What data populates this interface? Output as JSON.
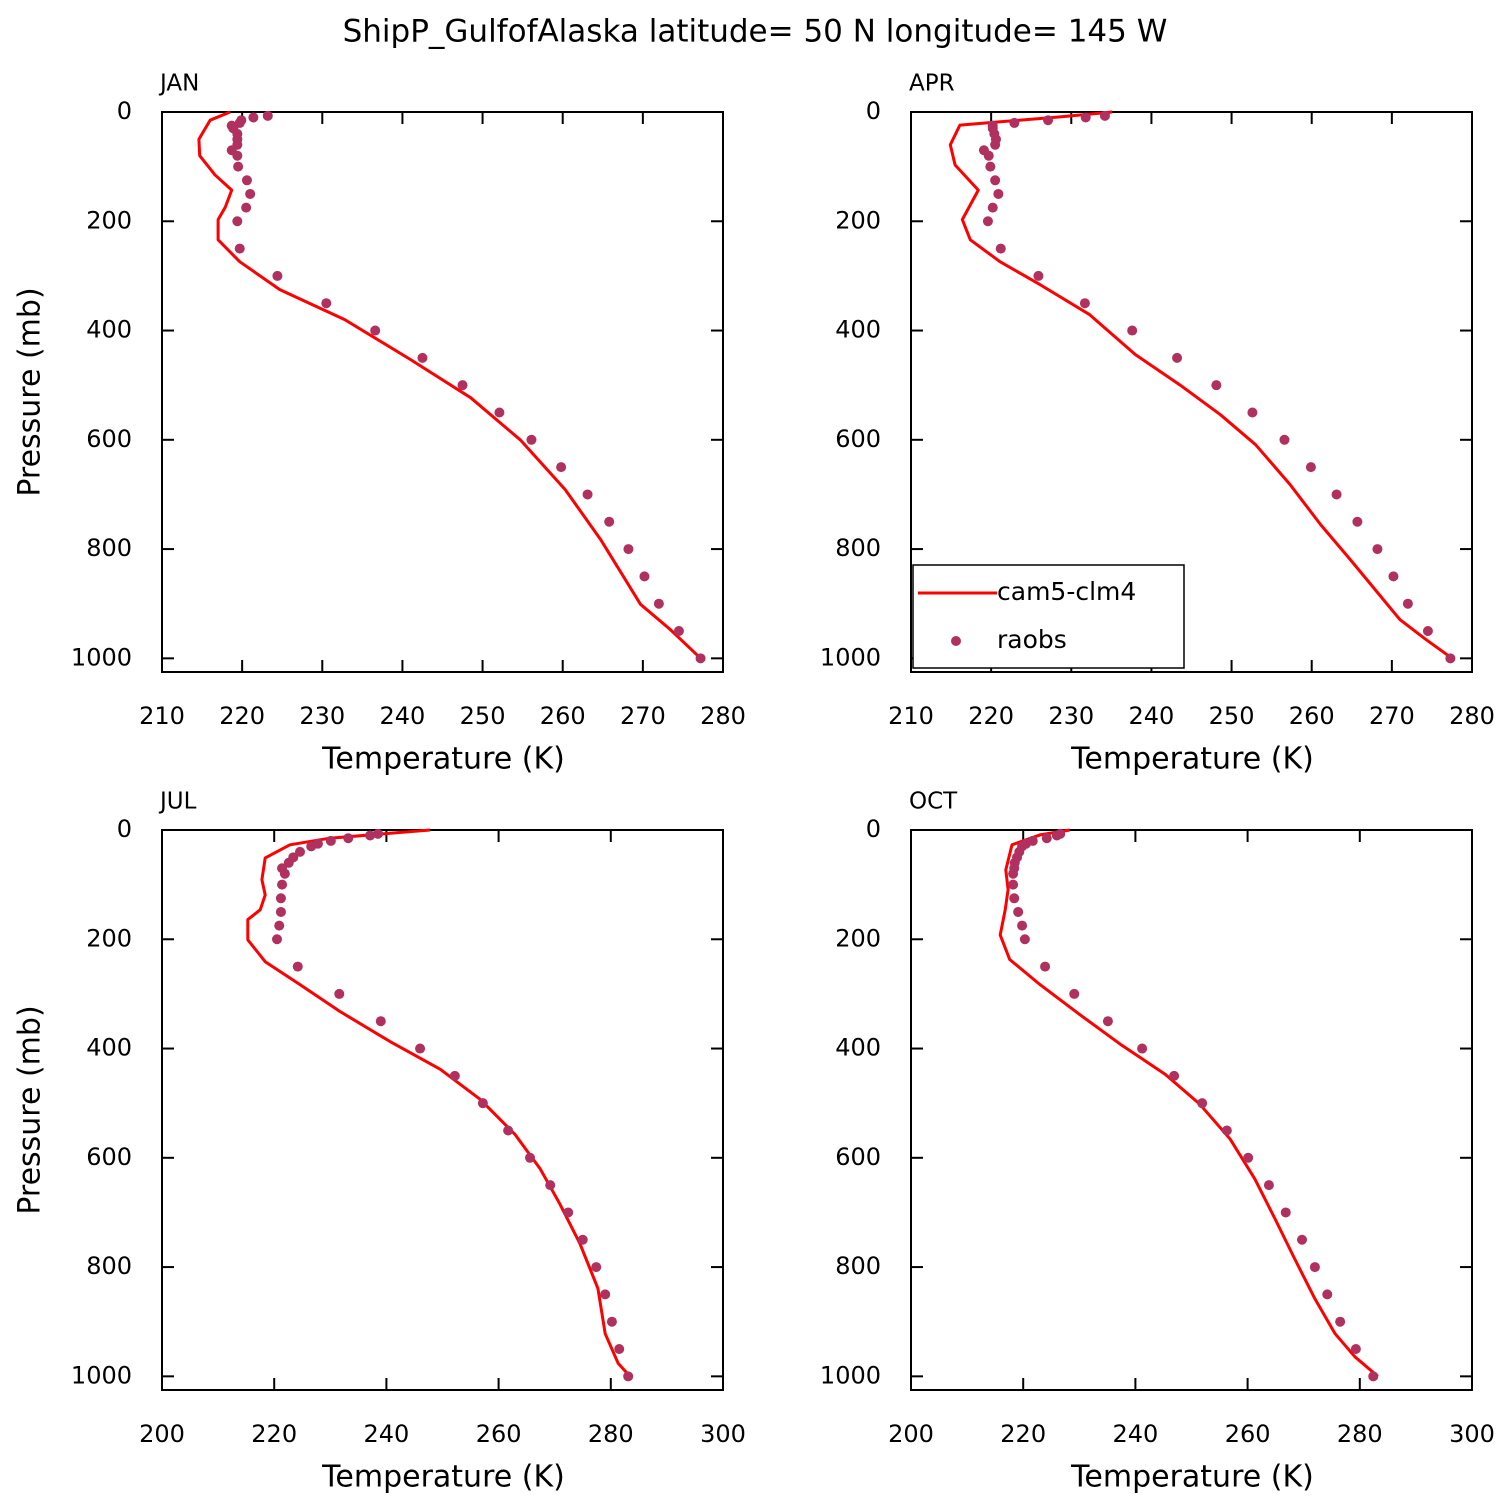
{
  "title": "ShipP_GulfofAlaska  latitude= 50 N longitude= 145 W",
  "chart_data": [
    {
      "type": "line",
      "title": "JAN",
      "xlabel": "Temperature (K)",
      "ylabel": "Pressure (mb)",
      "xlim": [
        210,
        280
      ],
      "xticks": [
        210,
        220,
        230,
        240,
        250,
        260,
        270,
        280
      ],
      "ylim": [
        1025,
        0
      ],
      "yticks": [
        0,
        200,
        400,
        600,
        800,
        1000
      ],
      "series": [
        {
          "color": "#ff0000",
          "style": "line",
          "pressure": [
            0,
            15,
            50,
            80,
            115,
            143,
            174,
            197,
            234,
            274,
            325,
            380,
            453,
            523,
            600,
            691,
            782,
            846,
            901,
            947,
            1000
          ],
          "values": [
            218.5,
            216,
            214.6,
            214.7,
            216.6,
            218.7,
            217.9,
            217,
            217,
            219.7,
            224.7,
            232.8,
            241,
            248.5,
            254.7,
            260.3,
            264.7,
            267.4,
            269.7,
            273.4,
            277.2
          ]
        },
        {
          "color": "#b03060",
          "style": "markers",
          "pressure": [
            7,
            10,
            15,
            20,
            25,
            30,
            40,
            50,
            60,
            70,
            80,
            100,
            125,
            150,
            175,
            200,
            250,
            300,
            350,
            400,
            450,
            500,
            550,
            600,
            650,
            700,
            750,
            800,
            850,
            900,
            950,
            1000
          ],
          "values": [
            223.2,
            221.4,
            219.9,
            219.7,
            218.7,
            218.9,
            219.4,
            219.4,
            219.4,
            218.7,
            219.4,
            219.5,
            220.6,
            221.0,
            220.5,
            219.4,
            219.7,
            224.4,
            230.5,
            236.6,
            242.5,
            247.5,
            252.1,
            256.1,
            259.8,
            263.1,
            265.8,
            268.2,
            270.2,
            272.0,
            274.5,
            277.2
          ]
        }
      ]
    },
    {
      "type": "line",
      "title": "APR",
      "xlabel": "Temperature (K)",
      "legend": "lower left",
      "xlim": [
        210,
        280
      ],
      "xticks": [
        210,
        220,
        230,
        240,
        250,
        260,
        270,
        280
      ],
      "ylim": [
        1025,
        0
      ],
      "yticks": [
        0,
        200,
        400,
        600,
        800,
        1000
      ],
      "series": [
        {
          "name": "cam5-clm4",
          "color": "#ff0000",
          "style": "line",
          "pressure": [
            0,
            9,
            24,
            60,
            97,
            143,
            170,
            197,
            234,
            274,
            316,
            371,
            444,
            500,
            554,
            609,
            682,
            755,
            819,
            874,
            929,
            965,
            1000
          ],
          "values": [
            235.1,
            228.6,
            216.1,
            214.9,
            215.5,
            218.4,
            217.4,
            216.4,
            217.4,
            221.1,
            226.1,
            232.3,
            238.0,
            243.6,
            248.6,
            253,
            257.3,
            261.1,
            264.8,
            267.9,
            271.0,
            274.2,
            277.5
          ]
        },
        {
          "name": "raobs",
          "color": "#b03060",
          "style": "markers",
          "pressure": [
            7,
            10,
            15,
            20,
            25,
            30,
            40,
            50,
            60,
            70,
            80,
            100,
            125,
            150,
            175,
            200,
            250,
            300,
            350,
            400,
            450,
            500,
            550,
            600,
            650,
            700,
            750,
            800,
            850,
            900,
            950,
            1000
          ],
          "values": [
            234.2,
            231.8,
            227.1,
            222.9,
            220.2,
            220.2,
            220.4,
            220.6,
            220.5,
            219.1,
            219.7,
            219.9,
            220.5,
            220.9,
            220.2,
            219.6,
            221.2,
            225.9,
            231.7,
            237.6,
            243.2,
            248.1,
            252.6,
            256.6,
            259.9,
            263.1,
            265.7,
            268.2,
            270.2,
            272.0,
            274.5,
            277.3
          ]
        }
      ]
    },
    {
      "type": "line",
      "title": "JUL",
      "xlabel": "Temperature (K)",
      "ylabel": "Pressure (mb)",
      "xlim": [
        200,
        300
      ],
      "xticks": [
        200,
        220,
        240,
        260,
        280,
        300
      ],
      "ylim": [
        1025,
        0
      ],
      "yticks": [
        0,
        200,
        400,
        600,
        800,
        1000
      ],
      "series": [
        {
          "color": "#ff0000",
          "style": "line",
          "pressure": [
            0,
            15,
            27,
            51,
            91,
            119,
            146,
            164,
            201,
            241,
            283,
            332,
            387,
            438,
            493,
            557,
            620,
            684,
            757,
            839,
            922,
            976,
            1000
          ],
          "values": [
            247.8,
            229.9,
            222.8,
            218.4,
            217.8,
            218.4,
            217.5,
            215.3,
            215.3,
            218.4,
            224.6,
            231.7,
            240.6,
            249.6,
            256.7,
            262.9,
            267.4,
            270.9,
            274.5,
            277.7,
            279,
            281.3,
            283.4
          ]
        },
        {
          "color": "#b03060",
          "style": "markers",
          "pressure": [
            7,
            10,
            15,
            20,
            25,
            30,
            40,
            50,
            60,
            70,
            80,
            100,
            125,
            150,
            175,
            200,
            250,
            300,
            350,
            400,
            450,
            500,
            550,
            600,
            650,
            700,
            750,
            800,
            850,
            900,
            950,
            1000
          ],
          "values": [
            238.5,
            237.1,
            233.2,
            230.1,
            227.8,
            226.6,
            224.6,
            223.4,
            222.6,
            221.4,
            221.9,
            221.4,
            221.2,
            221.2,
            220.9,
            220.5,
            224.2,
            231.6,
            239.0,
            246.0,
            252.2,
            257.2,
            261.7,
            265.6,
            269.2,
            272.4,
            275.0,
            277.4,
            279.0,
            280.2,
            281.5,
            283.1
          ]
        }
      ]
    },
    {
      "type": "line",
      "title": "OCT",
      "xlabel": "Temperature (K)",
      "xlim": [
        200,
        300
      ],
      "xticks": [
        200,
        220,
        240,
        260,
        280,
        300
      ],
      "ylim": [
        1025,
        0
      ],
      "yticks": [
        0,
        200,
        400,
        600,
        800,
        1000
      ],
      "series": [
        {
          "color": "#ff0000",
          "style": "line",
          "pressure": [
            0,
            9,
            27,
            73,
            109,
            146,
            192,
            237,
            283,
            338,
            392,
            447,
            502,
            566,
            639,
            712,
            785,
            858,
            922,
            964,
            1000
          ],
          "values": [
            228.3,
            223,
            218,
            216.9,
            217.3,
            216.8,
            215.9,
            217.6,
            223,
            230.1,
            237.3,
            245.3,
            251.5,
            256.9,
            261.3,
            264.9,
            268.4,
            272,
            275.6,
            279.1,
            283.2
          ]
        },
        {
          "color": "#b03060",
          "style": "markers",
          "pressure": [
            7,
            10,
            15,
            20,
            25,
            30,
            40,
            50,
            60,
            70,
            80,
            100,
            125,
            150,
            175,
            200,
            250,
            300,
            350,
            400,
            450,
            500,
            550,
            600,
            650,
            700,
            750,
            800,
            850,
            900,
            950,
            1000
          ],
          "values": [
            226.6,
            226.0,
            224.2,
            221.7,
            220.5,
            219.8,
            219.3,
            218.9,
            218.5,
            218.4,
            218.2,
            218.2,
            218.4,
            219.1,
            219.8,
            220.3,
            223.9,
            229.1,
            235.1,
            241.2,
            246.9,
            251.9,
            256.3,
            260.1,
            263.8,
            266.8,
            269.7,
            272.0,
            274.2,
            276.5,
            279.3,
            282.4
          ]
        }
      ]
    }
  ]
}
